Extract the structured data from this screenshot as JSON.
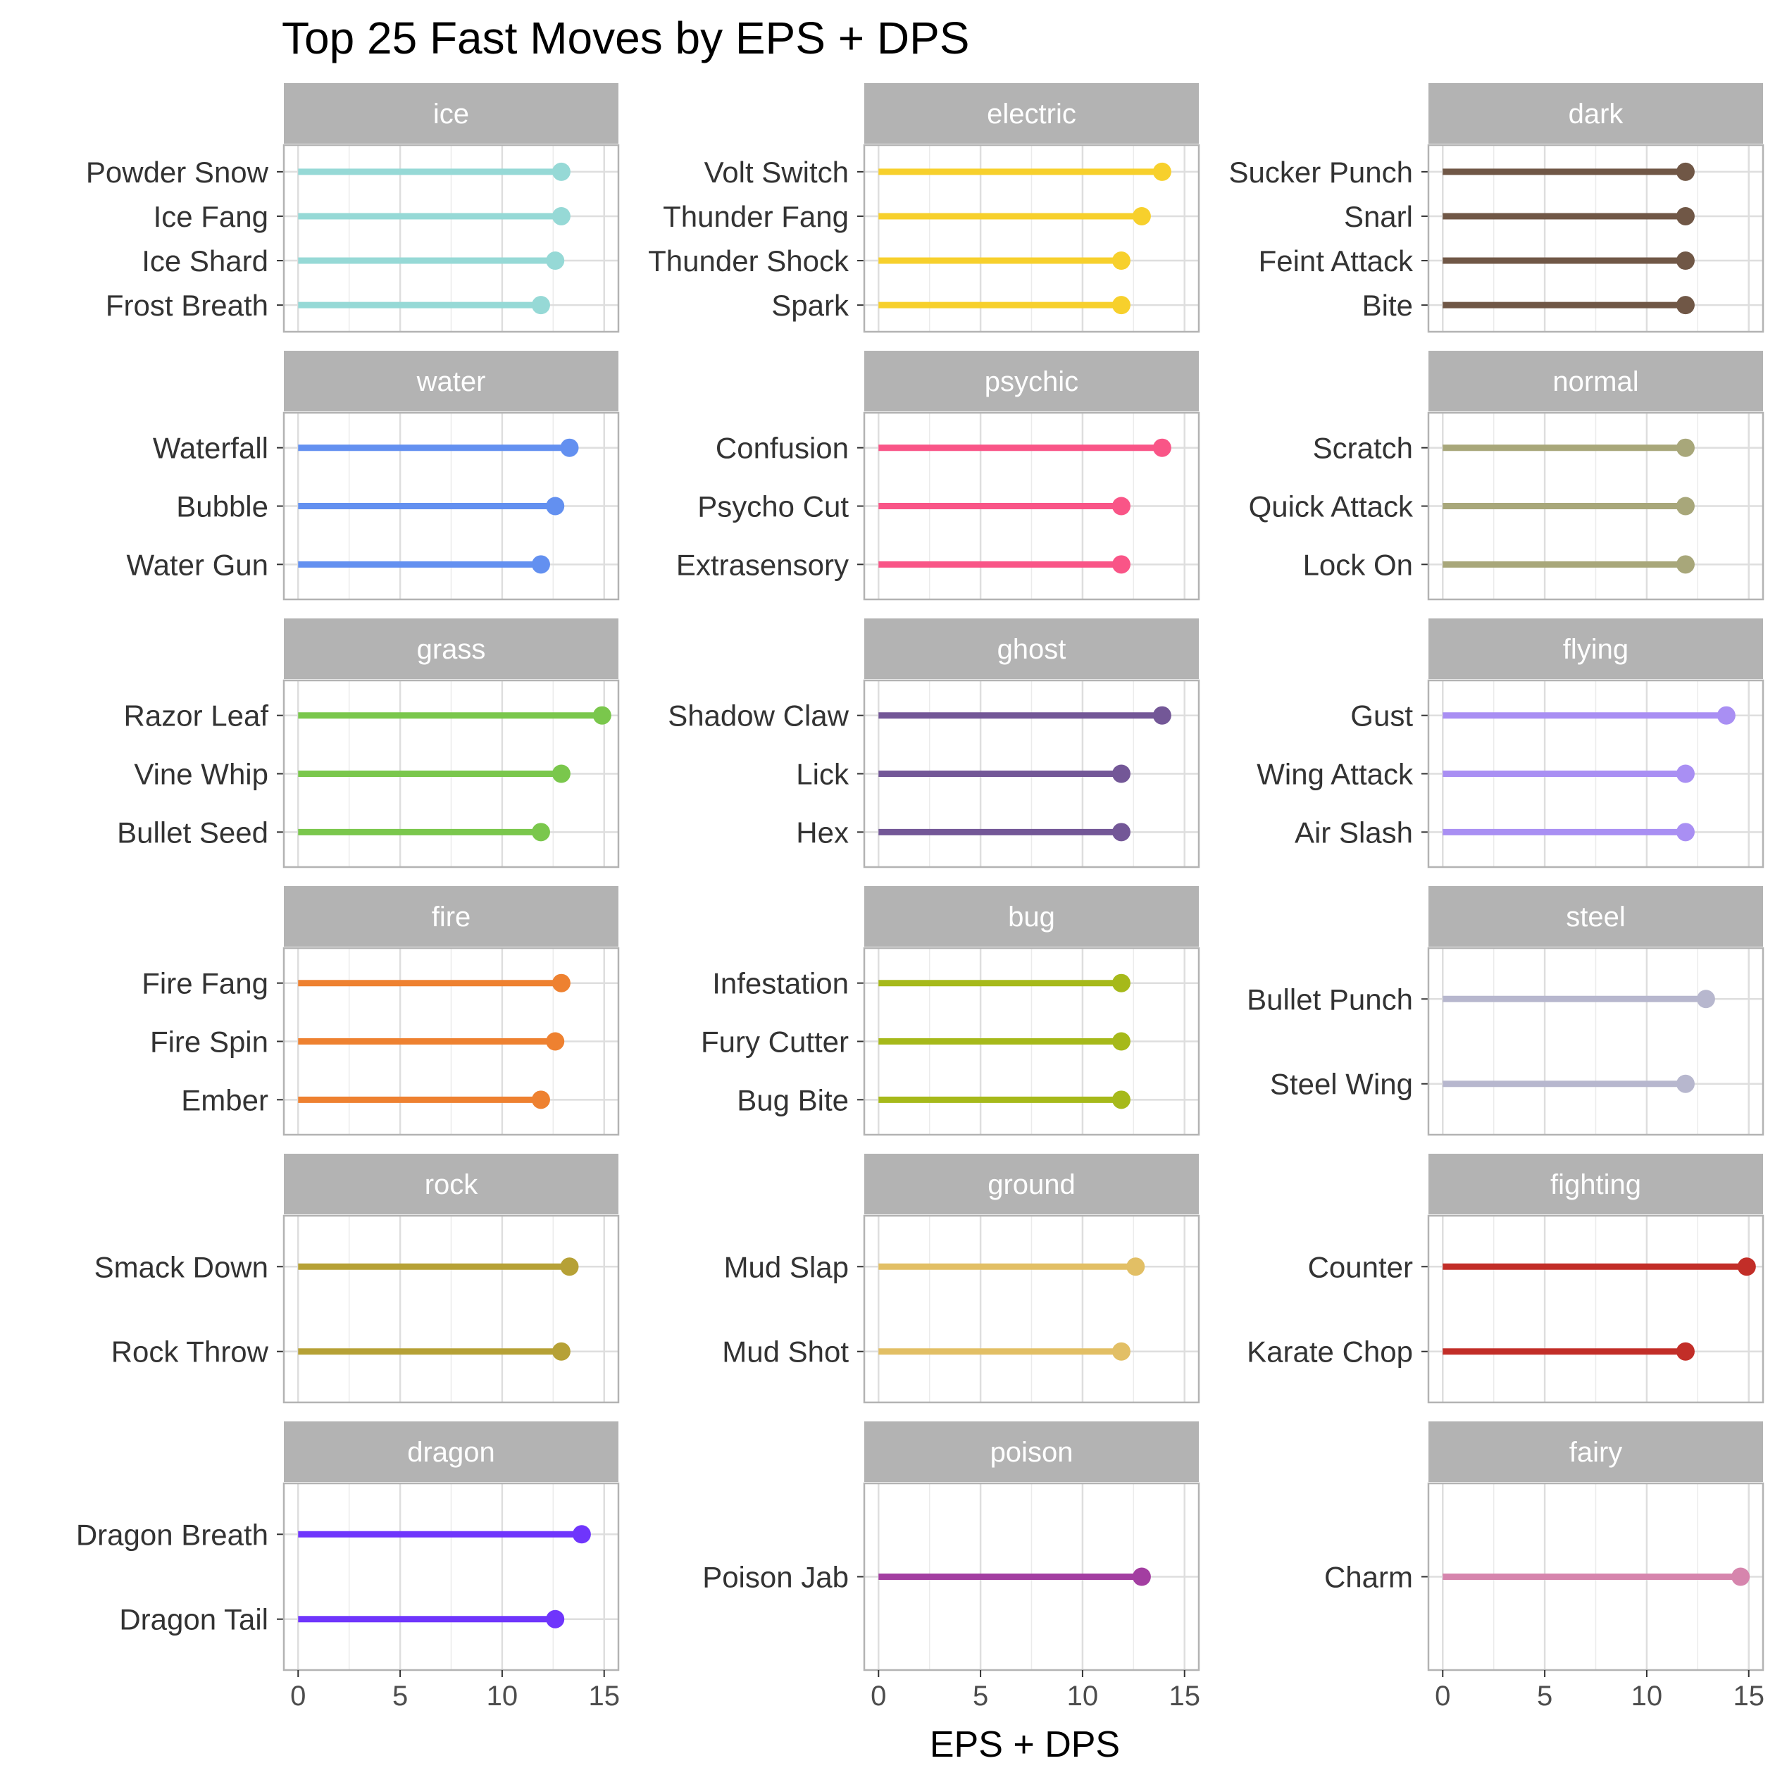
{
  "chart_data": {
    "type": "lollipop",
    "title": "Top 25 Fast Moves by EPS + DPS",
    "xlabel": "EPS + DPS",
    "ylabel": "",
    "xlim": [
      -0.7,
      15.7
    ],
    "x_ticks": [
      "0",
      "5",
      "10",
      "15"
    ],
    "x_tick_values": [
      0,
      5,
      10,
      15
    ],
    "grid": true,
    "layout": "facet grid, 3 columns x 6 rows",
    "panels": [
      {
        "type": "ice",
        "color": "#96D9D6",
        "moves": [
          {
            "name": "Powder Snow",
            "value": 12.9
          },
          {
            "name": "Ice Fang",
            "value": 12.9
          },
          {
            "name": "Ice Shard",
            "value": 12.6
          },
          {
            "name": "Frost Breath",
            "value": 11.9
          }
        ]
      },
      {
        "type": "electric",
        "color": "#F7D02C",
        "moves": [
          {
            "name": "Volt Switch",
            "value": 13.9
          },
          {
            "name": "Thunder Fang",
            "value": 12.9
          },
          {
            "name": "Thunder Shock",
            "value": 11.9
          },
          {
            "name": "Spark",
            "value": 11.9
          }
        ]
      },
      {
        "type": "dark",
        "color": "#705746",
        "moves": [
          {
            "name": "Sucker Punch",
            "value": 11.9
          },
          {
            "name": "Snarl",
            "value": 11.9
          },
          {
            "name": "Feint Attack",
            "value": 11.9
          },
          {
            "name": "Bite",
            "value": 11.9
          }
        ]
      },
      {
        "type": "water",
        "color": "#6390F0",
        "moves": [
          {
            "name": "Waterfall",
            "value": 13.3
          },
          {
            "name": "Bubble",
            "value": 12.6
          },
          {
            "name": "Water Gun",
            "value": 11.9
          }
        ]
      },
      {
        "type": "psychic",
        "color": "#F95587",
        "moves": [
          {
            "name": "Confusion",
            "value": 13.9
          },
          {
            "name": "Psycho Cut",
            "value": 11.9
          },
          {
            "name": "Extrasensory",
            "value": 11.9
          }
        ]
      },
      {
        "type": "normal",
        "color": "#A8A77A",
        "moves": [
          {
            "name": "Scratch",
            "value": 11.9
          },
          {
            "name": "Quick Attack",
            "value": 11.9
          },
          {
            "name": "Lock On",
            "value": 11.9
          }
        ]
      },
      {
        "type": "grass",
        "color": "#7AC74C",
        "moves": [
          {
            "name": "Razor Leaf",
            "value": 14.9
          },
          {
            "name": "Vine Whip",
            "value": 12.9
          },
          {
            "name": "Bullet Seed",
            "value": 11.9
          }
        ]
      },
      {
        "type": "ghost",
        "color": "#735797",
        "moves": [
          {
            "name": "Shadow Claw",
            "value": 13.9
          },
          {
            "name": "Lick",
            "value": 11.9
          },
          {
            "name": "Hex",
            "value": 11.9
          }
        ]
      },
      {
        "type": "flying",
        "color": "#A98FF3",
        "moves": [
          {
            "name": "Gust",
            "value": 13.9
          },
          {
            "name": "Wing Attack",
            "value": 11.9
          },
          {
            "name": "Air Slash",
            "value": 11.9
          }
        ]
      },
      {
        "type": "fire",
        "color": "#EE8130",
        "moves": [
          {
            "name": "Fire Fang",
            "value": 12.9
          },
          {
            "name": "Fire Spin",
            "value": 12.6
          },
          {
            "name": "Ember",
            "value": 11.9
          }
        ]
      },
      {
        "type": "bug",
        "color": "#A6B91A",
        "moves": [
          {
            "name": "Infestation",
            "value": 11.9
          },
          {
            "name": "Fury Cutter",
            "value": 11.9
          },
          {
            "name": "Bug Bite",
            "value": 11.9
          }
        ]
      },
      {
        "type": "steel",
        "color": "#B7B7CE",
        "moves": [
          {
            "name": "Bullet Punch",
            "value": 12.9
          },
          {
            "name": "Steel Wing",
            "value": 11.9
          }
        ]
      },
      {
        "type": "rock",
        "color": "#B6A136",
        "moves": [
          {
            "name": "Smack Down",
            "value": 13.3
          },
          {
            "name": "Rock Throw",
            "value": 12.9
          }
        ]
      },
      {
        "type": "ground",
        "color": "#E2BF65",
        "moves": [
          {
            "name": "Mud Slap",
            "value": 12.6
          },
          {
            "name": "Mud Shot",
            "value": 11.9
          }
        ]
      },
      {
        "type": "fighting",
        "color": "#C22E28",
        "moves": [
          {
            "name": "Counter",
            "value": 14.9
          },
          {
            "name": "Karate Chop",
            "value": 11.9
          }
        ]
      },
      {
        "type": "dragon",
        "color": "#6F35FC",
        "moves": [
          {
            "name": "Dragon Breath",
            "value": 13.9
          },
          {
            "name": "Dragon Tail",
            "value": 12.6
          }
        ]
      },
      {
        "type": "poison",
        "color": "#A33EA1",
        "moves": [
          {
            "name": "Poison Jab",
            "value": 12.9
          }
        ]
      },
      {
        "type": "fairy",
        "color": "#D685AD",
        "moves": [
          {
            "name": "Charm",
            "value": 14.6
          }
        ]
      }
    ]
  }
}
